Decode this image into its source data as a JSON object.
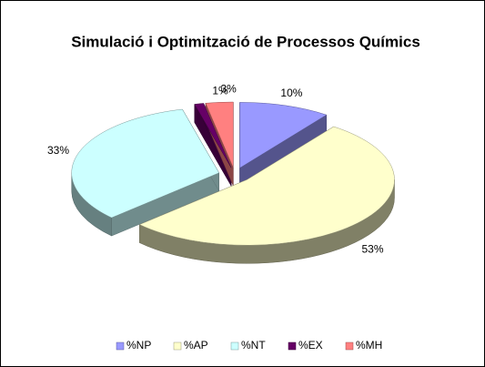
{
  "chart_data": {
    "type": "pie",
    "title": "Simulació i Optimització de Processos Químics",
    "categories": [
      "%NP",
      "%AP",
      "%NT",
      "%EX",
      "%MH"
    ],
    "values": [
      10,
      53,
      33,
      1,
      3
    ],
    "value_labels": [
      "10%",
      "53%",
      "33%",
      "1%",
      "3%"
    ],
    "colors": [
      "#9999ff",
      "#ffffcc",
      "#ccffff",
      "#660066",
      "#ff8080"
    ],
    "legend": "bottom"
  }
}
